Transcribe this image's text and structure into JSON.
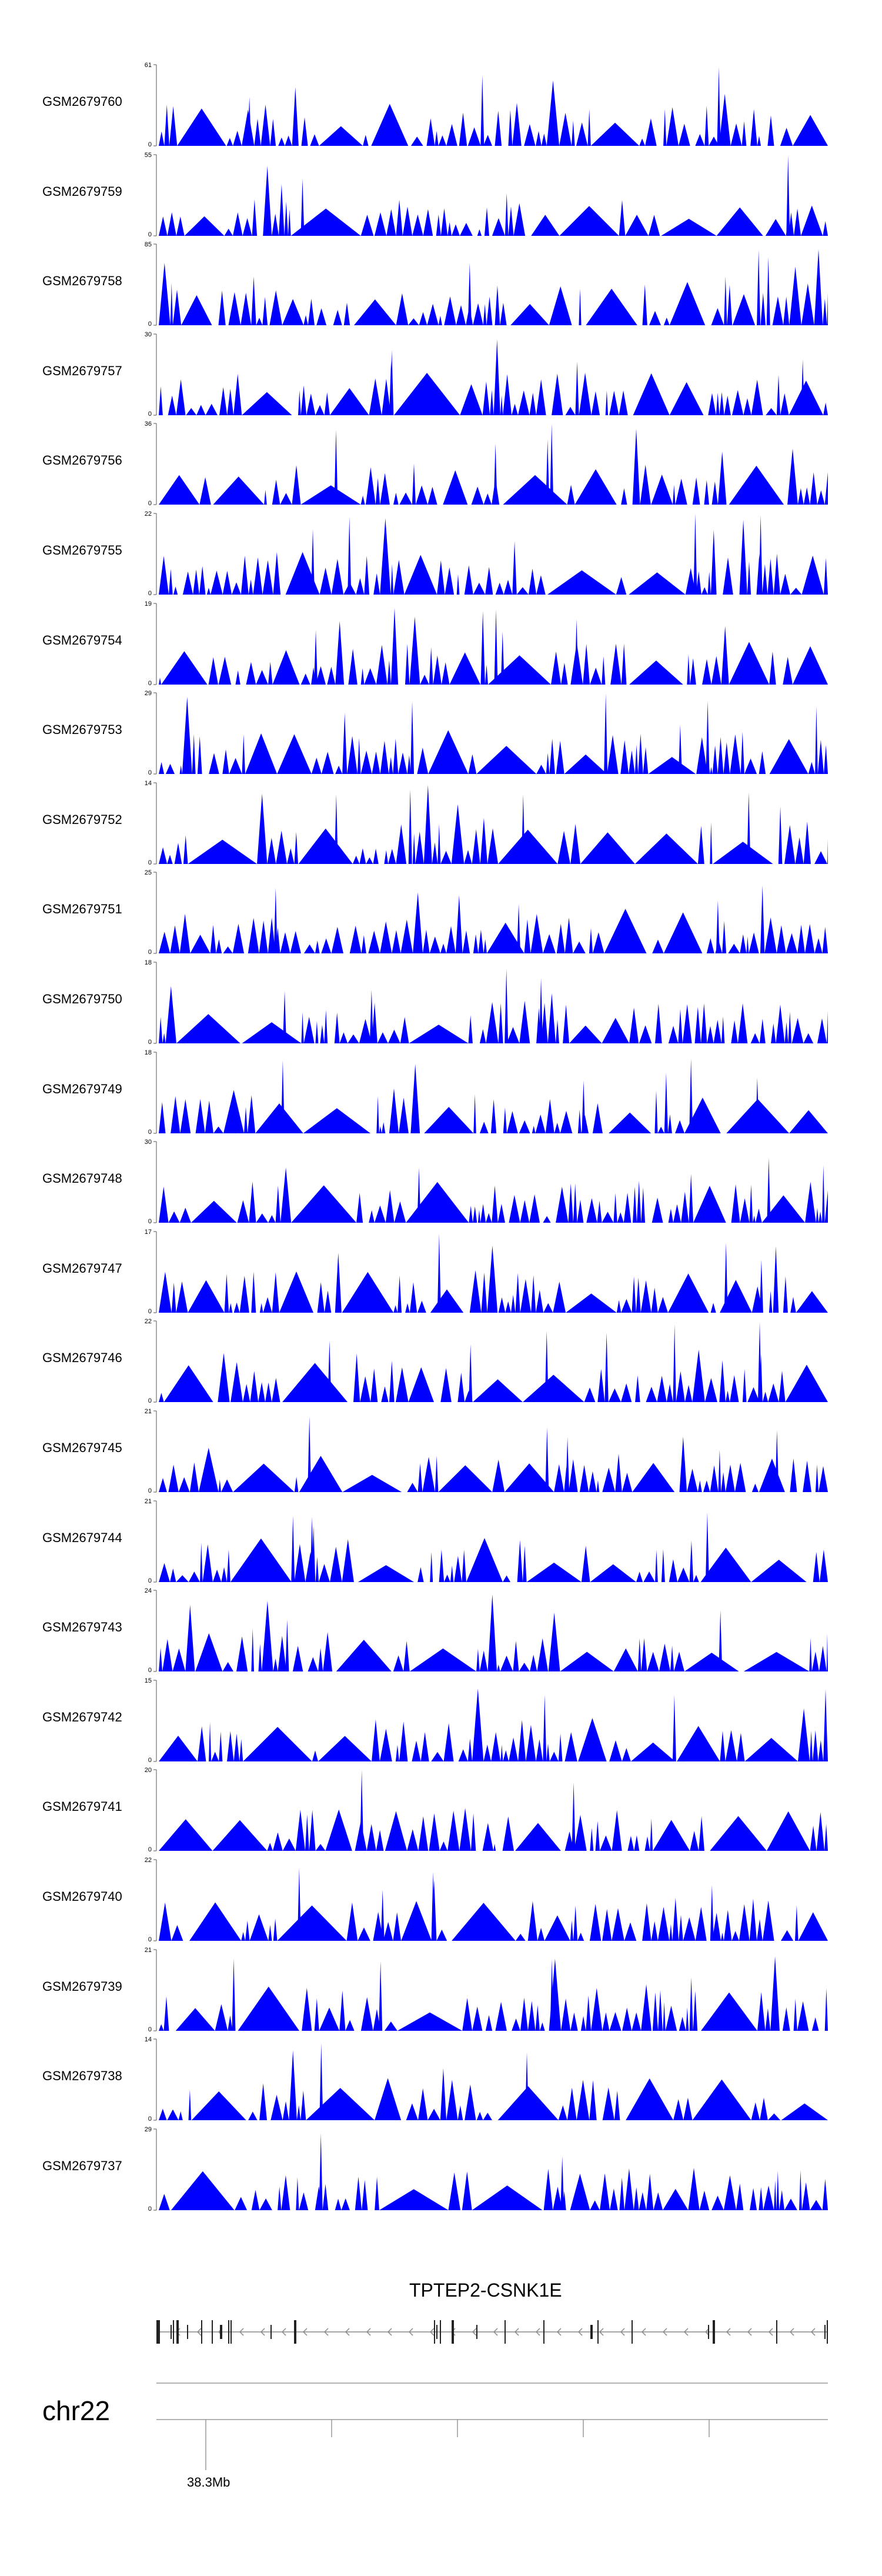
{
  "chart_data": {
    "type": "area",
    "series_color": "#0000ff",
    "tracks": [
      {
        "name": "GSM2679760",
        "ymax": "61",
        "ymin": "0"
      },
      {
        "name": "GSM2679759",
        "ymax": "55",
        "ymin": "0"
      },
      {
        "name": "GSM2679758",
        "ymax": "85",
        "ymin": "0"
      },
      {
        "name": "GSM2679757",
        "ymax": "30",
        "ymin": "0"
      },
      {
        "name": "GSM2679756",
        "ymax": "36",
        "ymin": "0"
      },
      {
        "name": "GSM2679755",
        "ymax": "22",
        "ymin": "0"
      },
      {
        "name": "GSM2679754",
        "ymax": "19",
        "ymin": "0"
      },
      {
        "name": "GSM2679753",
        "ymax": "29",
        "ymin": "0"
      },
      {
        "name": "GSM2679752",
        "ymax": "14",
        "ymin": "0"
      },
      {
        "name": "GSM2679751",
        "ymax": "25",
        "ymin": "0"
      },
      {
        "name": "GSM2679750",
        "ymax": "18",
        "ymin": "0"
      },
      {
        "name": "GSM2679749",
        "ymax": "18",
        "ymin": "0"
      },
      {
        "name": "GSM2679748",
        "ymax": "30",
        "ymin": "0"
      },
      {
        "name": "GSM2679747",
        "ymax": "17",
        "ymin": "0"
      },
      {
        "name": "GSM2679746",
        "ymax": "22",
        "ymin": "0"
      },
      {
        "name": "GSM2679745",
        "ymax": "21",
        "ymin": "0"
      },
      {
        "name": "GSM2679744",
        "ymax": "21",
        "ymin": "0"
      },
      {
        "name": "GSM2679743",
        "ymax": "24",
        "ymin": "0"
      },
      {
        "name": "GSM2679742",
        "ymax": "15",
        "ymin": "0"
      },
      {
        "name": "GSM2679741",
        "ymax": "20",
        "ymin": "0"
      },
      {
        "name": "GSM2679740",
        "ymax": "22",
        "ymin": "0"
      },
      {
        "name": "GSM2679739",
        "ymax": "21",
        "ymin": "0"
      },
      {
        "name": "GSM2679738",
        "ymax": "14",
        "ymin": "0"
      },
      {
        "name": "GSM2679737",
        "ymax": "29",
        "ymin": "0"
      }
    ],
    "gene": "TPTEP2-CSNK1E",
    "chromosome": "chr22",
    "axis_tick_label": "38.3Mb"
  }
}
